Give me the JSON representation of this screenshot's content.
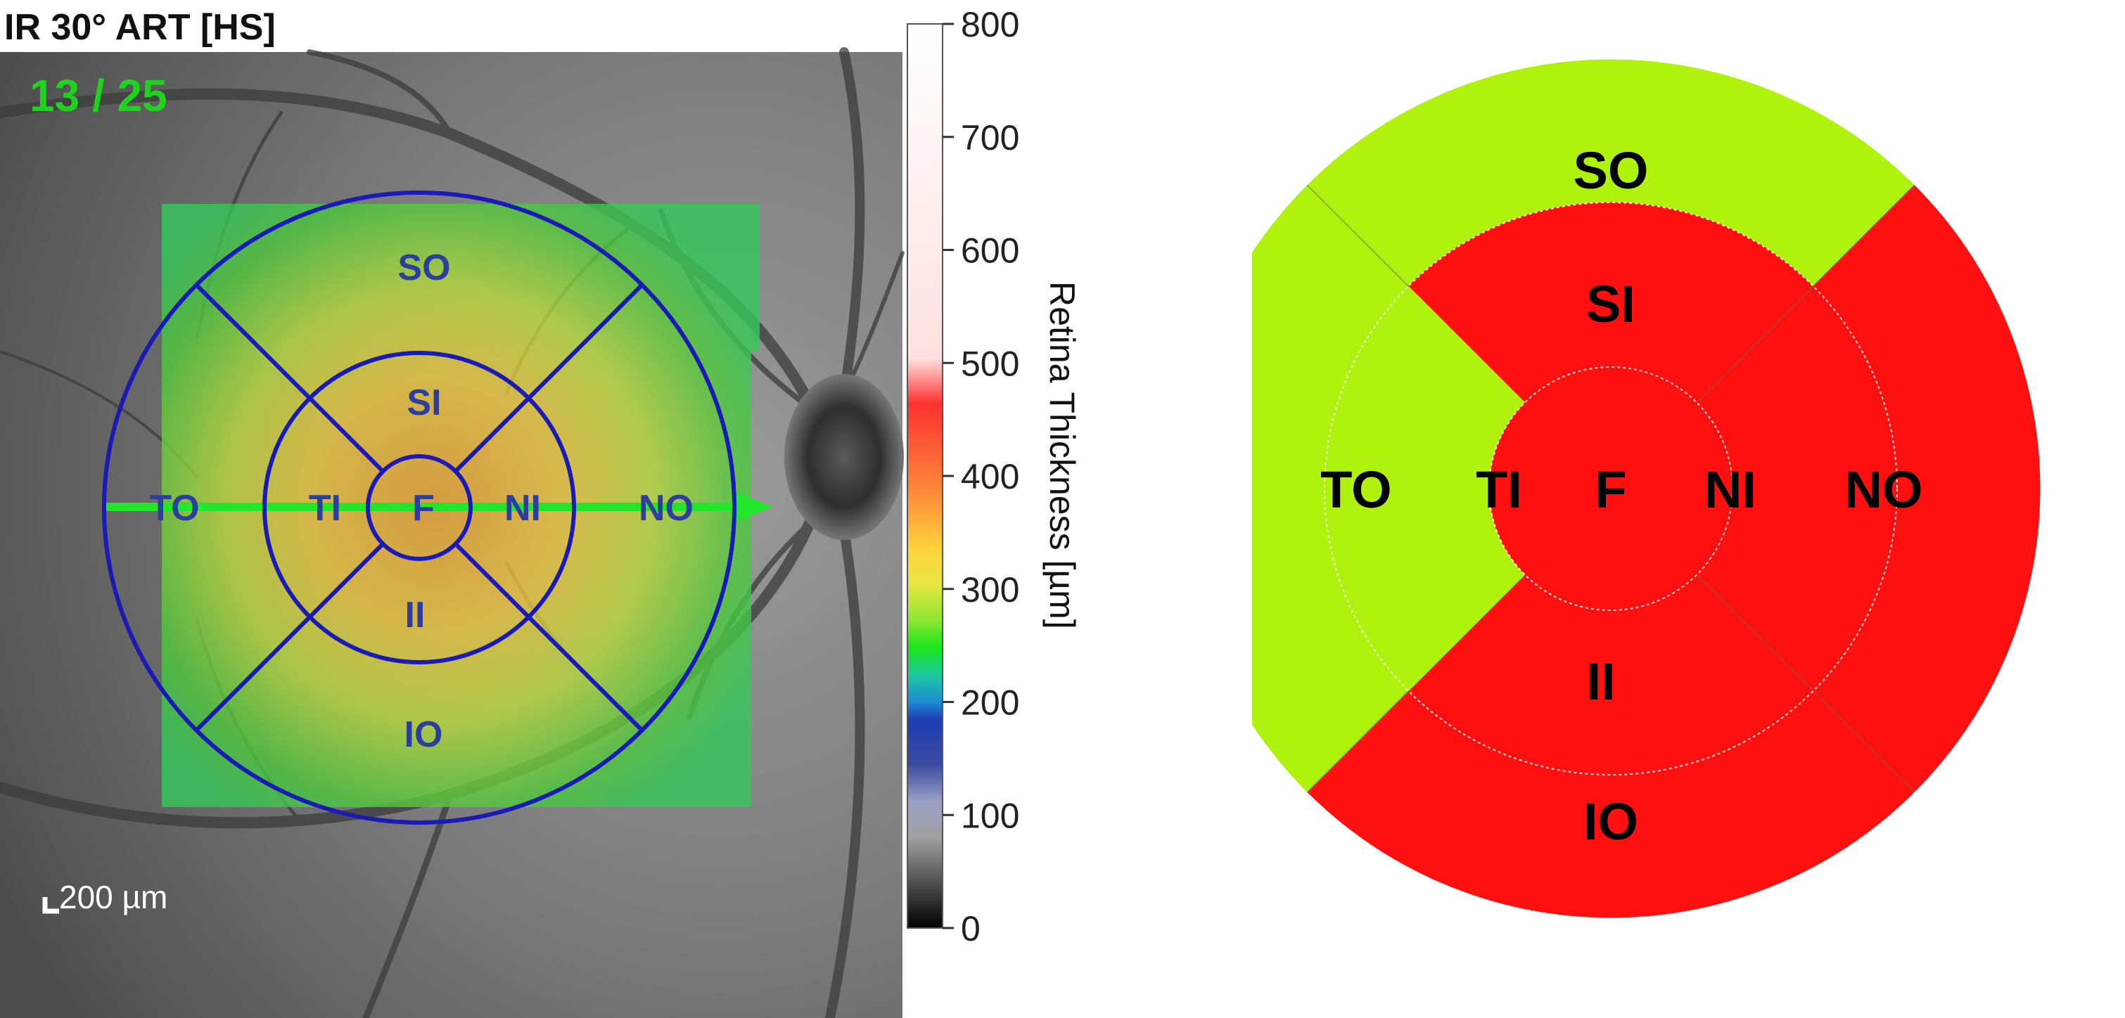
{
  "scan": {
    "title": "IR 30° ART [HS]",
    "counter": "13 / 25",
    "scale_label": "200 µm"
  },
  "colorbar": {
    "label": "Retina Thickness [µm]",
    "ticks": [
      "800",
      "700",
      "600",
      "500",
      "400",
      "300",
      "200",
      "100",
      "0"
    ],
    "stops": [
      "#ffffff",
      "#ff3b3b",
      "#ffb43c",
      "#e6e642",
      "#19e619",
      "#1e50d2",
      "#a0a0a0",
      "#000000"
    ]
  },
  "grid": {
    "sectors": [
      "SO",
      "SI",
      "TO",
      "TI",
      "F",
      "NI",
      "NO",
      "II",
      "IO"
    ]
  },
  "colors": {
    "normal": "#aef20d",
    "abnormal": "#ff1010",
    "grid_line": "#1a1ab4",
    "counter": "#1ed21e"
  },
  "map": {
    "labels": {
      "SO": "SO",
      "SI": "SI",
      "TO": "TO",
      "TI": "TI",
      "F": "F",
      "NI": "NI",
      "NO": "NO",
      "II": "II",
      "IO": "IO"
    },
    "status": {
      "SO": "normal",
      "TO": "normal",
      "TI": "normal",
      "SI": "abnormal",
      "F": "abnormal",
      "NI": "abnormal",
      "NO": "abnormal",
      "II": "abnormal",
      "IO": "abnormal"
    }
  }
}
